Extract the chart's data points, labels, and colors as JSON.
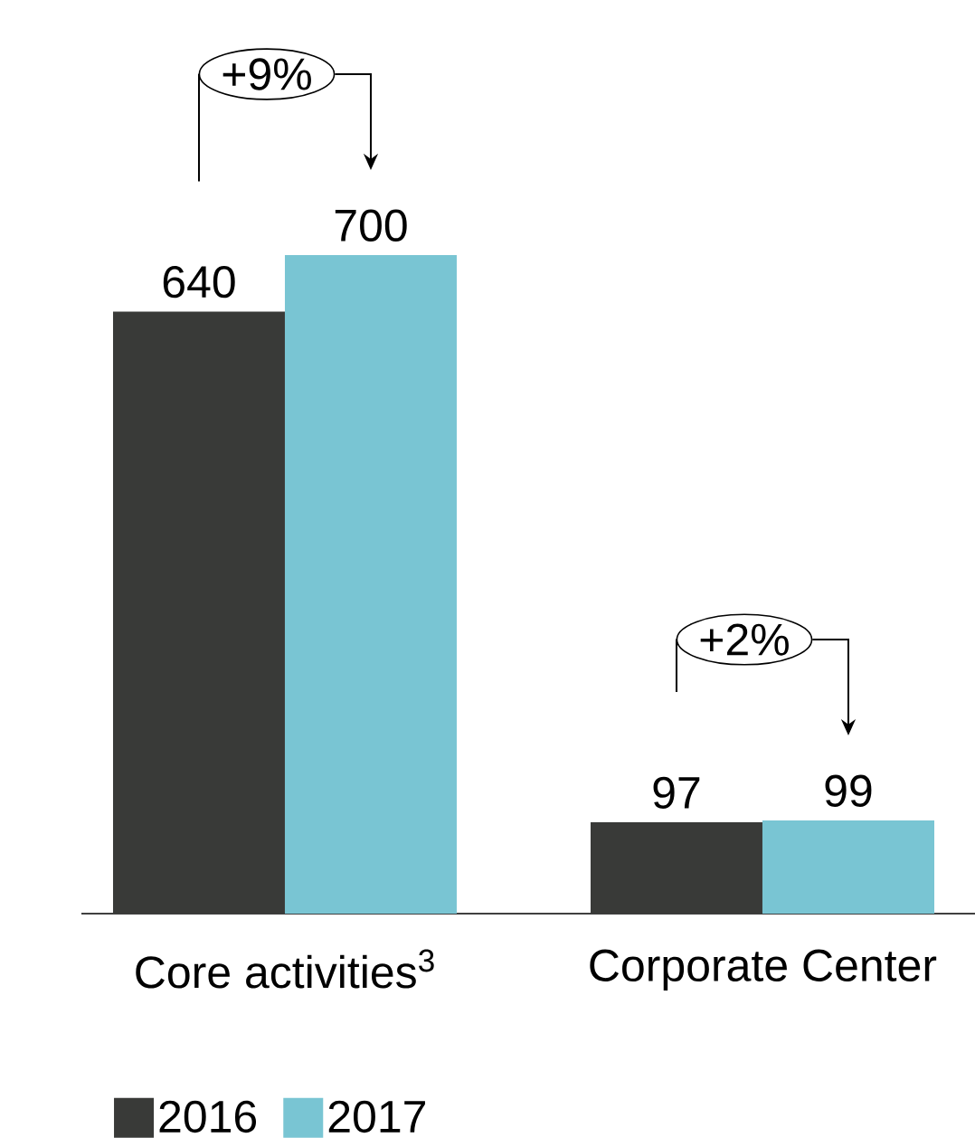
{
  "chart_data": {
    "type": "bar",
    "categories": [
      "Core activities$^{3}$",
      "Corporate Center"
    ],
    "series": [
      {
        "name": "2016",
        "color": "#393a38",
        "values": [
          640,
          97
        ]
      },
      {
        "name": "2017",
        "color": "#79c5d3",
        "values": [
          700,
          99
        ]
      }
    ],
    "data_labels": true,
    "legend": "bottom left",
    "annotations": [
      "+9%",
      "+2%"
    ]
  }
}
